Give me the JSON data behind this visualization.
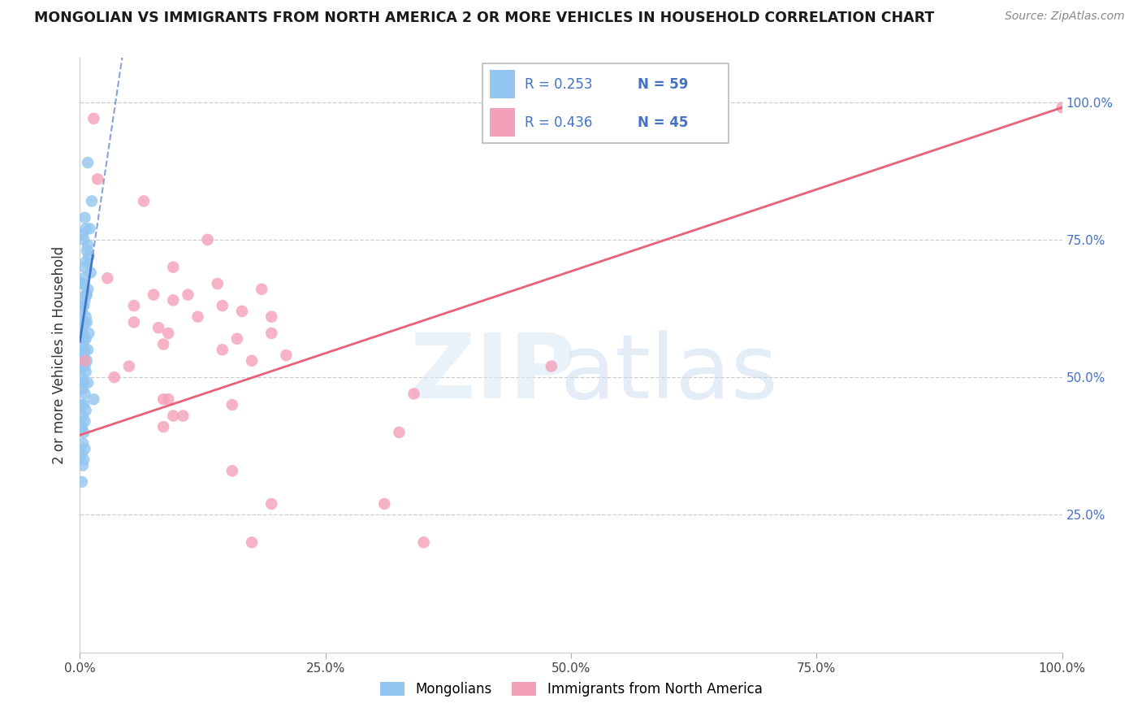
{
  "title": "MONGOLIAN VS IMMIGRANTS FROM NORTH AMERICA 2 OR MORE VEHICLES IN HOUSEHOLD CORRELATION CHART",
  "source": "Source: ZipAtlas.com",
  "ylabel": "2 or more Vehicles in Household",
  "background_color": "#ffffff",
  "blue_color": "#92C5F0",
  "pink_color": "#F4A0B8",
  "blue_line_color": "#4472C4",
  "pink_line_color": "#E8607A",
  "blue_scatter": [
    [
      0.008,
      0.89
    ],
    [
      0.012,
      0.82
    ],
    [
      0.005,
      0.79
    ],
    [
      0.006,
      0.77
    ],
    [
      0.01,
      0.77
    ],
    [
      0.003,
      0.76
    ],
    [
      0.004,
      0.75
    ],
    [
      0.008,
      0.74
    ],
    [
      0.007,
      0.73
    ],
    [
      0.009,
      0.72
    ],
    [
      0.006,
      0.71
    ],
    [
      0.005,
      0.7
    ],
    [
      0.011,
      0.69
    ],
    [
      0.004,
      0.68
    ],
    [
      0.003,
      0.67
    ],
    [
      0.002,
      0.67
    ],
    [
      0.008,
      0.66
    ],
    [
      0.007,
      0.65
    ],
    [
      0.006,
      0.65
    ],
    [
      0.005,
      0.64
    ],
    [
      0.003,
      0.63
    ],
    [
      0.004,
      0.63
    ],
    [
      0.002,
      0.62
    ],
    [
      0.006,
      0.61
    ],
    [
      0.007,
      0.6
    ],
    [
      0.005,
      0.6
    ],
    [
      0.003,
      0.59
    ],
    [
      0.009,
      0.58
    ],
    [
      0.002,
      0.58
    ],
    [
      0.004,
      0.57
    ],
    [
      0.006,
      0.57
    ],
    [
      0.003,
      0.56
    ],
    [
      0.005,
      0.55
    ],
    [
      0.008,
      0.55
    ],
    [
      0.002,
      0.54
    ],
    [
      0.004,
      0.54
    ],
    [
      0.007,
      0.53
    ],
    [
      0.003,
      0.52
    ],
    [
      0.005,
      0.52
    ],
    [
      0.006,
      0.51
    ],
    [
      0.002,
      0.5
    ],
    [
      0.004,
      0.49
    ],
    [
      0.008,
      0.49
    ],
    [
      0.003,
      0.48
    ],
    [
      0.005,
      0.47
    ],
    [
      0.014,
      0.46
    ],
    [
      0.002,
      0.45
    ],
    [
      0.004,
      0.45
    ],
    [
      0.006,
      0.44
    ],
    [
      0.003,
      0.43
    ],
    [
      0.005,
      0.42
    ],
    [
      0.002,
      0.41
    ],
    [
      0.004,
      0.4
    ],
    [
      0.003,
      0.38
    ],
    [
      0.005,
      0.37
    ],
    [
      0.002,
      0.36
    ],
    [
      0.004,
      0.35
    ],
    [
      0.003,
      0.34
    ],
    [
      0.002,
      0.31
    ]
  ],
  "pink_scatter": [
    [
      0.014,
      0.97
    ],
    [
      0.018,
      0.86
    ],
    [
      0.065,
      0.82
    ],
    [
      0.13,
      0.75
    ],
    [
      0.095,
      0.7
    ],
    [
      0.028,
      0.68
    ],
    [
      0.14,
      0.67
    ],
    [
      0.185,
      0.66
    ],
    [
      0.11,
      0.65
    ],
    [
      0.075,
      0.65
    ],
    [
      0.095,
      0.64
    ],
    [
      0.055,
      0.63
    ],
    [
      0.145,
      0.63
    ],
    [
      0.165,
      0.62
    ],
    [
      0.12,
      0.61
    ],
    [
      0.195,
      0.61
    ],
    [
      0.055,
      0.6
    ],
    [
      0.08,
      0.59
    ],
    [
      0.09,
      0.58
    ],
    [
      0.195,
      0.58
    ],
    [
      0.16,
      0.57
    ],
    [
      0.085,
      0.56
    ],
    [
      0.145,
      0.55
    ],
    [
      0.21,
      0.54
    ],
    [
      0.175,
      0.53
    ],
    [
      0.05,
      0.52
    ],
    [
      0.035,
      0.5
    ],
    [
      0.48,
      0.52
    ],
    [
      0.34,
      0.47
    ],
    [
      0.085,
      0.46
    ],
    [
      0.09,
      0.46
    ],
    [
      0.155,
      0.45
    ],
    [
      0.095,
      0.43
    ],
    [
      0.105,
      0.43
    ],
    [
      0.085,
      0.41
    ],
    [
      0.325,
      0.4
    ],
    [
      0.195,
      0.27
    ],
    [
      0.31,
      0.27
    ],
    [
      0.175,
      0.2
    ],
    [
      0.35,
      0.2
    ],
    [
      0.155,
      0.33
    ],
    [
      0.005,
      0.53
    ],
    [
      1.0,
      0.99
    ]
  ],
  "blue_line": {
    "x0": 0.0,
    "x1": 0.014,
    "x2": 0.2,
    "y_intercept": 0.57,
    "slope": 18.0
  },
  "pink_line": {
    "x0": 0.0,
    "x1": 1.0,
    "y_intercept": 0.4,
    "slope": 0.59
  },
  "xlim": [
    0.0,
    1.0
  ],
  "ylim": [
    0.0,
    1.08
  ],
  "xticks": [
    0.0,
    0.25,
    0.5,
    0.75,
    1.0
  ],
  "yticks": [
    0.25,
    0.5,
    0.75,
    1.0
  ],
  "xticklabels": [
    "0.0%",
    "25.0%",
    "50.0%",
    "75.0%",
    "100.0%"
  ],
  "yticklabels_right": [
    "25.0%",
    "50.0%",
    "75.0%",
    "100.0%"
  ],
  "grid_yticks": [
    0.25,
    0.5,
    0.75,
    1.0
  ]
}
